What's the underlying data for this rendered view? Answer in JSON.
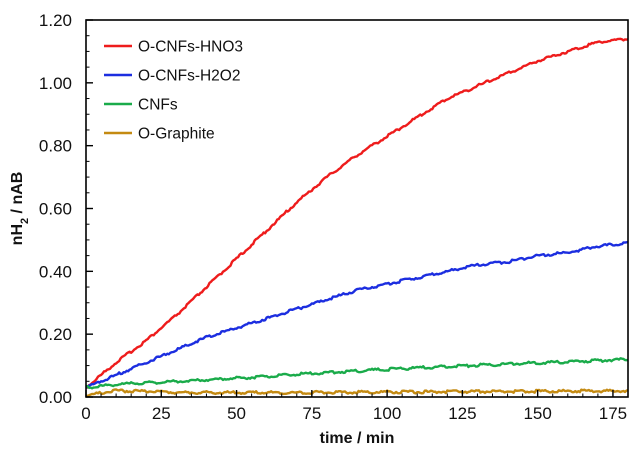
{
  "chart_data": {
    "type": "line",
    "title": "",
    "xlabel": "time / min",
    "ylabel": "nH2 / nAB",
    "ylabel_main": "nH",
    "ylabel_sub": "2",
    "ylabel_rest": " / nAB",
    "xlim": [
      0,
      180
    ],
    "ylim": [
      0,
      1.2
    ],
    "xticks": [
      0,
      25,
      50,
      75,
      100,
      125,
      150,
      175
    ],
    "yticks": [
      0,
      0.2,
      0.4,
      0.6,
      0.8,
      1.0,
      1.2
    ],
    "xtick_labels": [
      "0",
      "25",
      "50",
      "75",
      "100",
      "125",
      "150",
      "175"
    ],
    "ytick_labels": [
      "0.00",
      "0.20",
      "0.40",
      "0.60",
      "0.80",
      "1.00",
      "1.20"
    ],
    "grid": false,
    "legend_position": "top-left",
    "x": [
      0,
      10,
      20,
      30,
      40,
      50,
      60,
      70,
      80,
      90,
      100,
      110,
      120,
      130,
      140,
      150,
      160,
      170,
      180
    ],
    "series": [
      {
        "name": "O-CNFs-HNO3",
        "color": "#ee1c1c",
        "values": [
          0.03,
          0.11,
          0.18,
          0.26,
          0.35,
          0.44,
          0.53,
          0.62,
          0.7,
          0.77,
          0.83,
          0.89,
          0.95,
          0.99,
          1.03,
          1.07,
          1.1,
          1.13,
          1.14
        ]
      },
      {
        "name": "O-CNFs-H2O2",
        "color": "#1c2ee0",
        "values": [
          0.03,
          0.07,
          0.11,
          0.15,
          0.19,
          0.22,
          0.25,
          0.28,
          0.31,
          0.34,
          0.36,
          0.38,
          0.4,
          0.42,
          0.43,
          0.45,
          0.46,
          0.48,
          0.49
        ]
      },
      {
        "name": "CNFs",
        "color": "#1aab4a",
        "values": [
          0.03,
          0.04,
          0.045,
          0.05,
          0.055,
          0.06,
          0.065,
          0.072,
          0.078,
          0.083,
          0.088,
          0.093,
          0.097,
          0.101,
          0.105,
          0.109,
          0.112,
          0.116,
          0.12
        ]
      },
      {
        "name": "O-Graphite",
        "color": "#c48a12",
        "values": [
          0.005,
          0.02,
          0.018,
          0.015,
          0.014,
          0.014,
          0.014,
          0.014,
          0.015,
          0.015,
          0.016,
          0.016,
          0.017,
          0.017,
          0.018,
          0.018,
          0.019,
          0.019,
          0.02
        ]
      }
    ]
  }
}
